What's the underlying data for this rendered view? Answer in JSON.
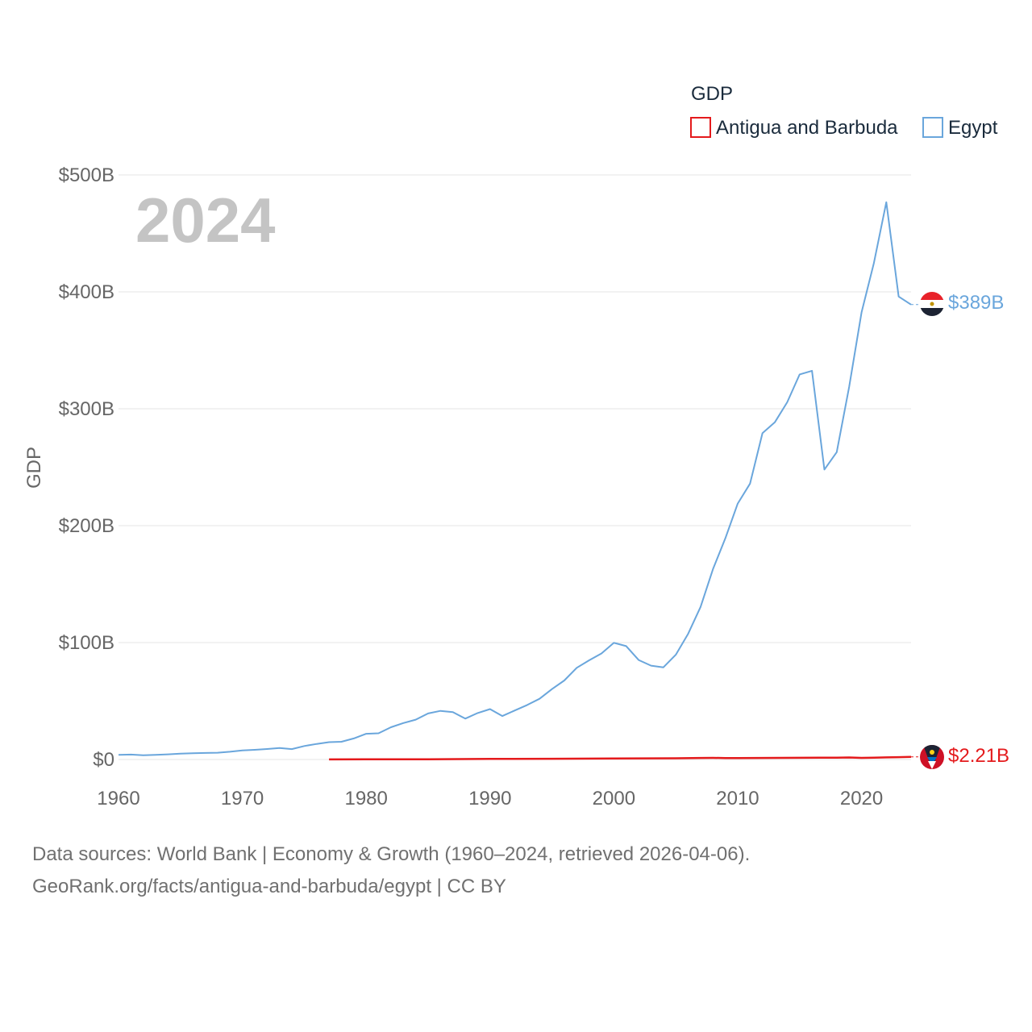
{
  "chart_data": {
    "type": "line",
    "title": "GDP",
    "ylabel": "GDP",
    "xlabel": "",
    "big_year": "2024",
    "xlim": [
      1960,
      2024
    ],
    "ylim": [
      0,
      500
    ],
    "x_ticks": [
      1960,
      1970,
      1980,
      1990,
      2000,
      2010,
      2020
    ],
    "y_ticks": [
      0,
      100,
      200,
      300,
      400,
      500
    ],
    "y_tick_labels": [
      "$0",
      "$100B",
      "$200B",
      "$300B",
      "$400B",
      "$500B"
    ],
    "legend": {
      "title": "GDP",
      "placement": "top-right",
      "entries": [
        "Antigua and Barbuda",
        "Egypt"
      ]
    },
    "series": [
      {
        "name": "Antigua and Barbuda",
        "color": "#e41a1c",
        "end_label": "$2.21B",
        "flag": "antigua-and-barbuda-flag-icon",
        "x": [
          1977,
          1980,
          1985,
          1990,
          1995,
          2000,
          2005,
          2007,
          2008,
          2009,
          2010,
          2015,
          2018,
          2019,
          2020,
          2021,
          2022,
          2023,
          2024
        ],
        "values": [
          0.08,
          0.13,
          0.24,
          0.46,
          0.59,
          0.83,
          1.05,
          1.3,
          1.38,
          1.24,
          1.15,
          1.44,
          1.61,
          1.69,
          1.41,
          1.56,
          1.76,
          2.03,
          2.21
        ]
      },
      {
        "name": "Egypt",
        "color": "#6aa6dc",
        "end_label": "$389B",
        "flag": "egypt-flag-icon",
        "x": [
          1960,
          1961,
          1962,
          1963,
          1964,
          1965,
          1966,
          1967,
          1968,
          1969,
          1970,
          1971,
          1972,
          1973,
          1974,
          1975,
          1976,
          1977,
          1978,
          1979,
          1980,
          1981,
          1982,
          1983,
          1984,
          1985,
          1986,
          1987,
          1988,
          1989,
          1990,
          1991,
          1992,
          1993,
          1994,
          1995,
          1996,
          1997,
          1998,
          1999,
          2000,
          2001,
          2002,
          2003,
          2004,
          2005,
          2006,
          2007,
          2008,
          2009,
          2010,
          2011,
          2012,
          2013,
          2014,
          2015,
          2016,
          2017,
          2018,
          2019,
          2020,
          2021,
          2022,
          2023,
          2024
        ],
        "values": [
          4.0,
          4.2,
          3.6,
          4.0,
          4.4,
          5.0,
          5.4,
          5.6,
          5.8,
          6.6,
          7.7,
          8.3,
          9.0,
          9.8,
          8.9,
          11.5,
          13.3,
          14.8,
          15.2,
          18.0,
          22.0,
          22.4,
          27.6,
          31.2,
          34.1,
          39.4,
          41.6,
          40.5,
          35.0,
          39.7,
          43.1,
          37.2,
          41.9,
          46.6,
          51.9,
          60.2,
          67.6,
          78.4,
          84.8,
          90.7,
          99.8,
          97.0,
          85.1,
          80.3,
          78.8,
          89.6,
          107.5,
          130.5,
          162.8,
          189.1,
          218.9,
          236.0,
          279.1,
          288.4,
          305.6,
          329.4,
          332.5,
          248.0,
          262.9,
          318.7,
          382.5,
          424.7,
          476.7,
          396.0,
          389.1
        ]
      }
    ],
    "source_lines": [
      "Data sources: World Bank | Economy & Growth (1960–2024, retrieved 2026-04-06).",
      "GeoRank.org/facts/antigua-and-barbuda/egypt | CC BY"
    ]
  }
}
